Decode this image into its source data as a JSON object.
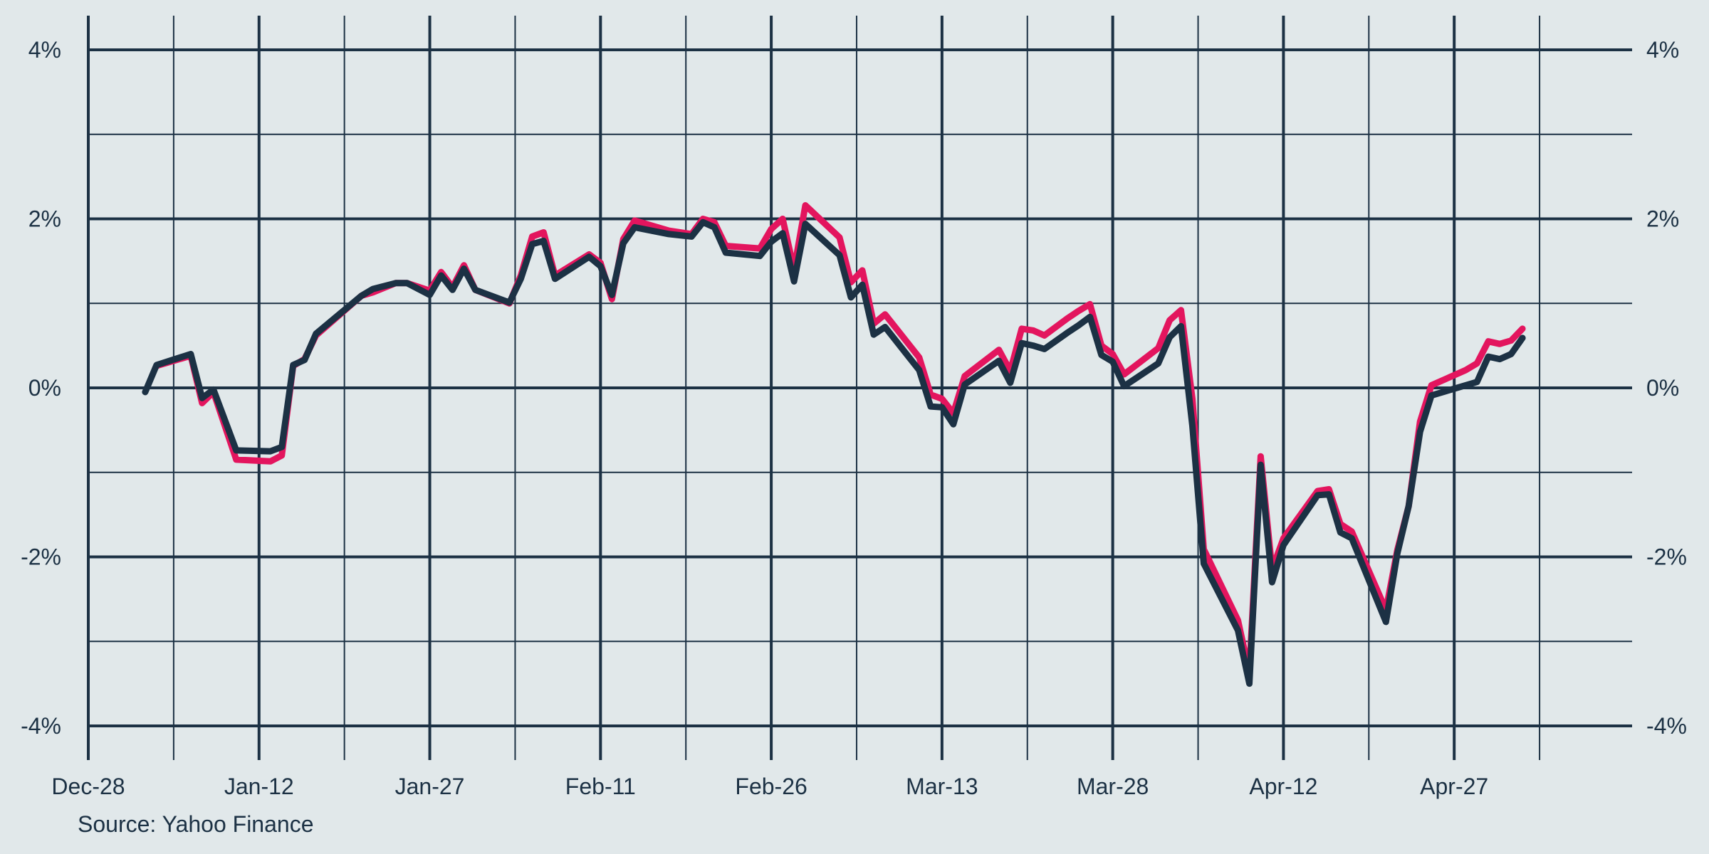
{
  "colors": {
    "background": "#e1e8ea",
    "grid": "#1c3144",
    "text": "#1c3144",
    "series_pink": "#e3155e",
    "series_dark": "#1c3144"
  },
  "source": "Source: Yahoo Finance",
  "chart_data": {
    "type": "line",
    "x_unit": "days since Dec 28",
    "xlim": [
      0,
      132
    ],
    "ylim": [
      -4,
      4
    ],
    "grid": true,
    "legend": "none",
    "x_ticks": [
      {
        "label": "Dec-28",
        "x": 0
      },
      {
        "label": "Jan-12",
        "x": 15
      },
      {
        "label": "Jan-27",
        "x": 30
      },
      {
        "label": "Feb-11",
        "x": 45
      },
      {
        "label": "Feb-26",
        "x": 60
      },
      {
        "label": "Mar-13",
        "x": 75
      },
      {
        "label": "Mar-28",
        "x": 90
      },
      {
        "label": "Apr-12",
        "x": 105
      },
      {
        "label": "Apr-27",
        "x": 120
      }
    ],
    "y_ticks": [
      {
        "label": "4%",
        "y": 4
      },
      {
        "label": "2%",
        "y": 2
      },
      {
        "label": "0%",
        "y": 0
      },
      {
        "label": "-2%",
        "y": -2
      },
      {
        "label": "-4%",
        "y": -4
      }
    ],
    "series": [
      {
        "color": "#e3155e",
        "points": [
          [
            6,
            0.26
          ],
          [
            9,
            0.38
          ],
          [
            10,
            -0.18
          ],
          [
            11,
            -0.05
          ],
          [
            13,
            -0.85
          ],
          [
            16,
            -0.87
          ],
          [
            17,
            -0.8
          ],
          [
            18,
            0.26
          ],
          [
            19,
            0.34
          ],
          [
            20,
            0.62
          ],
          [
            24,
            1.09
          ],
          [
            25,
            1.13
          ],
          [
            27,
            1.24
          ],
          [
            28,
            1.24
          ],
          [
            30,
            1.15
          ],
          [
            31,
            1.37
          ],
          [
            32,
            1.19
          ],
          [
            33,
            1.45
          ],
          [
            34,
            1.16
          ],
          [
            37,
            1.0
          ],
          [
            38,
            1.33
          ],
          [
            39,
            1.79
          ],
          [
            40,
            1.84
          ],
          [
            41,
            1.33
          ],
          [
            44,
            1.58
          ],
          [
            45,
            1.48
          ],
          [
            46,
            1.05
          ],
          [
            47,
            1.76
          ],
          [
            48,
            1.98
          ],
          [
            51,
            1.86
          ],
          [
            53,
            1.82
          ],
          [
            54,
            2.0
          ],
          [
            55,
            1.96
          ],
          [
            56,
            1.68
          ],
          [
            59,
            1.65
          ],
          [
            60,
            1.88
          ],
          [
            61,
            2.0
          ],
          [
            62,
            1.4
          ],
          [
            63,
            2.16
          ],
          [
            66,
            1.78
          ],
          [
            67,
            1.25
          ],
          [
            68,
            1.39
          ],
          [
            69,
            0.76
          ],
          [
            70,
            0.87
          ],
          [
            73,
            0.36
          ],
          [
            74,
            -0.08
          ],
          [
            75,
            -0.13
          ],
          [
            76,
            -0.3
          ],
          [
            77,
            0.14
          ],
          [
            80,
            0.45
          ],
          [
            81,
            0.2
          ],
          [
            82,
            0.7
          ],
          [
            83,
            0.68
          ],
          [
            84,
            0.62
          ],
          [
            86,
            0.82
          ],
          [
            87,
            0.91
          ],
          [
            88,
            0.99
          ],
          [
            89,
            0.5
          ],
          [
            90,
            0.4
          ],
          [
            91,
            0.16
          ],
          [
            94,
            0.47
          ],
          [
            95,
            0.8
          ],
          [
            96,
            0.92
          ],
          [
            97,
            -0.13
          ],
          [
            98,
            -1.91
          ],
          [
            101,
            -2.75
          ],
          [
            102,
            -3.37
          ],
          [
            103,
            -0.81
          ],
          [
            104,
            -2.15
          ],
          [
            105,
            -1.78
          ],
          [
            108,
            -1.22
          ],
          [
            109,
            -1.2
          ],
          [
            110,
            -1.61
          ],
          [
            111,
            -1.7
          ],
          [
            114,
            -2.63
          ],
          [
            115,
            -1.92
          ],
          [
            116,
            -1.4
          ],
          [
            117,
            -0.4
          ],
          [
            118,
            0.03
          ],
          [
            121,
            0.21
          ],
          [
            122,
            0.29
          ],
          [
            123,
            0.55
          ],
          [
            124,
            0.52
          ],
          [
            125,
            0.56
          ],
          [
            126,
            0.7
          ]
        ]
      },
      {
        "color": "#1c3144",
        "points": [
          [
            5,
            -0.05
          ],
          [
            6,
            0.27
          ],
          [
            9,
            0.4
          ],
          [
            10,
            -0.12
          ],
          [
            11,
            -0.02
          ],
          [
            13,
            -0.74
          ],
          [
            16,
            -0.75
          ],
          [
            17,
            -0.7
          ],
          [
            18,
            0.27
          ],
          [
            19,
            0.33
          ],
          [
            20,
            0.64
          ],
          [
            24,
            1.09
          ],
          [
            25,
            1.17
          ],
          [
            27,
            1.24
          ],
          [
            28,
            1.24
          ],
          [
            30,
            1.1
          ],
          [
            31,
            1.33
          ],
          [
            32,
            1.16
          ],
          [
            33,
            1.41
          ],
          [
            34,
            1.16
          ],
          [
            37,
            1.01
          ],
          [
            38,
            1.29
          ],
          [
            39,
            1.7
          ],
          [
            40,
            1.74
          ],
          [
            41,
            1.29
          ],
          [
            44,
            1.55
          ],
          [
            45,
            1.44
          ],
          [
            46,
            1.1
          ],
          [
            47,
            1.71
          ],
          [
            48,
            1.9
          ],
          [
            51,
            1.82
          ],
          [
            53,
            1.79
          ],
          [
            54,
            1.96
          ],
          [
            55,
            1.9
          ],
          [
            56,
            1.6
          ],
          [
            59,
            1.56
          ],
          [
            60,
            1.73
          ],
          [
            61,
            1.83
          ],
          [
            62,
            1.26
          ],
          [
            63,
            1.94
          ],
          [
            66,
            1.57
          ],
          [
            67,
            1.07
          ],
          [
            68,
            1.22
          ],
          [
            69,
            0.63
          ],
          [
            70,
            0.72
          ],
          [
            73,
            0.21
          ],
          [
            74,
            -0.22
          ],
          [
            75,
            -0.23
          ],
          [
            76,
            -0.43
          ],
          [
            77,
            0.04
          ],
          [
            80,
            0.32
          ],
          [
            81,
            0.06
          ],
          [
            82,
            0.53
          ],
          [
            83,
            0.5
          ],
          [
            84,
            0.46
          ],
          [
            86,
            0.65
          ],
          [
            87,
            0.74
          ],
          [
            88,
            0.84
          ],
          [
            89,
            0.39
          ],
          [
            90,
            0.31
          ],
          [
            91,
            0.02
          ],
          [
            94,
            0.29
          ],
          [
            95,
            0.6
          ],
          [
            96,
            0.73
          ],
          [
            97,
            -0.45
          ],
          [
            98,
            -2.08
          ],
          [
            101,
            -2.87
          ],
          [
            102,
            -3.5
          ],
          [
            103,
            -0.91
          ],
          [
            104,
            -2.3
          ],
          [
            105,
            -1.86
          ],
          [
            108,
            -1.27
          ],
          [
            109,
            -1.26
          ],
          [
            110,
            -1.71
          ],
          [
            111,
            -1.78
          ],
          [
            114,
            -2.77
          ],
          [
            115,
            -1.96
          ],
          [
            116,
            -1.4
          ],
          [
            117,
            -0.52
          ],
          [
            118,
            -0.09
          ],
          [
            121,
            0.03
          ],
          [
            122,
            0.07
          ],
          [
            123,
            0.37
          ],
          [
            124,
            0.34
          ],
          [
            125,
            0.4
          ],
          [
            126,
            0.59
          ]
        ]
      }
    ]
  }
}
